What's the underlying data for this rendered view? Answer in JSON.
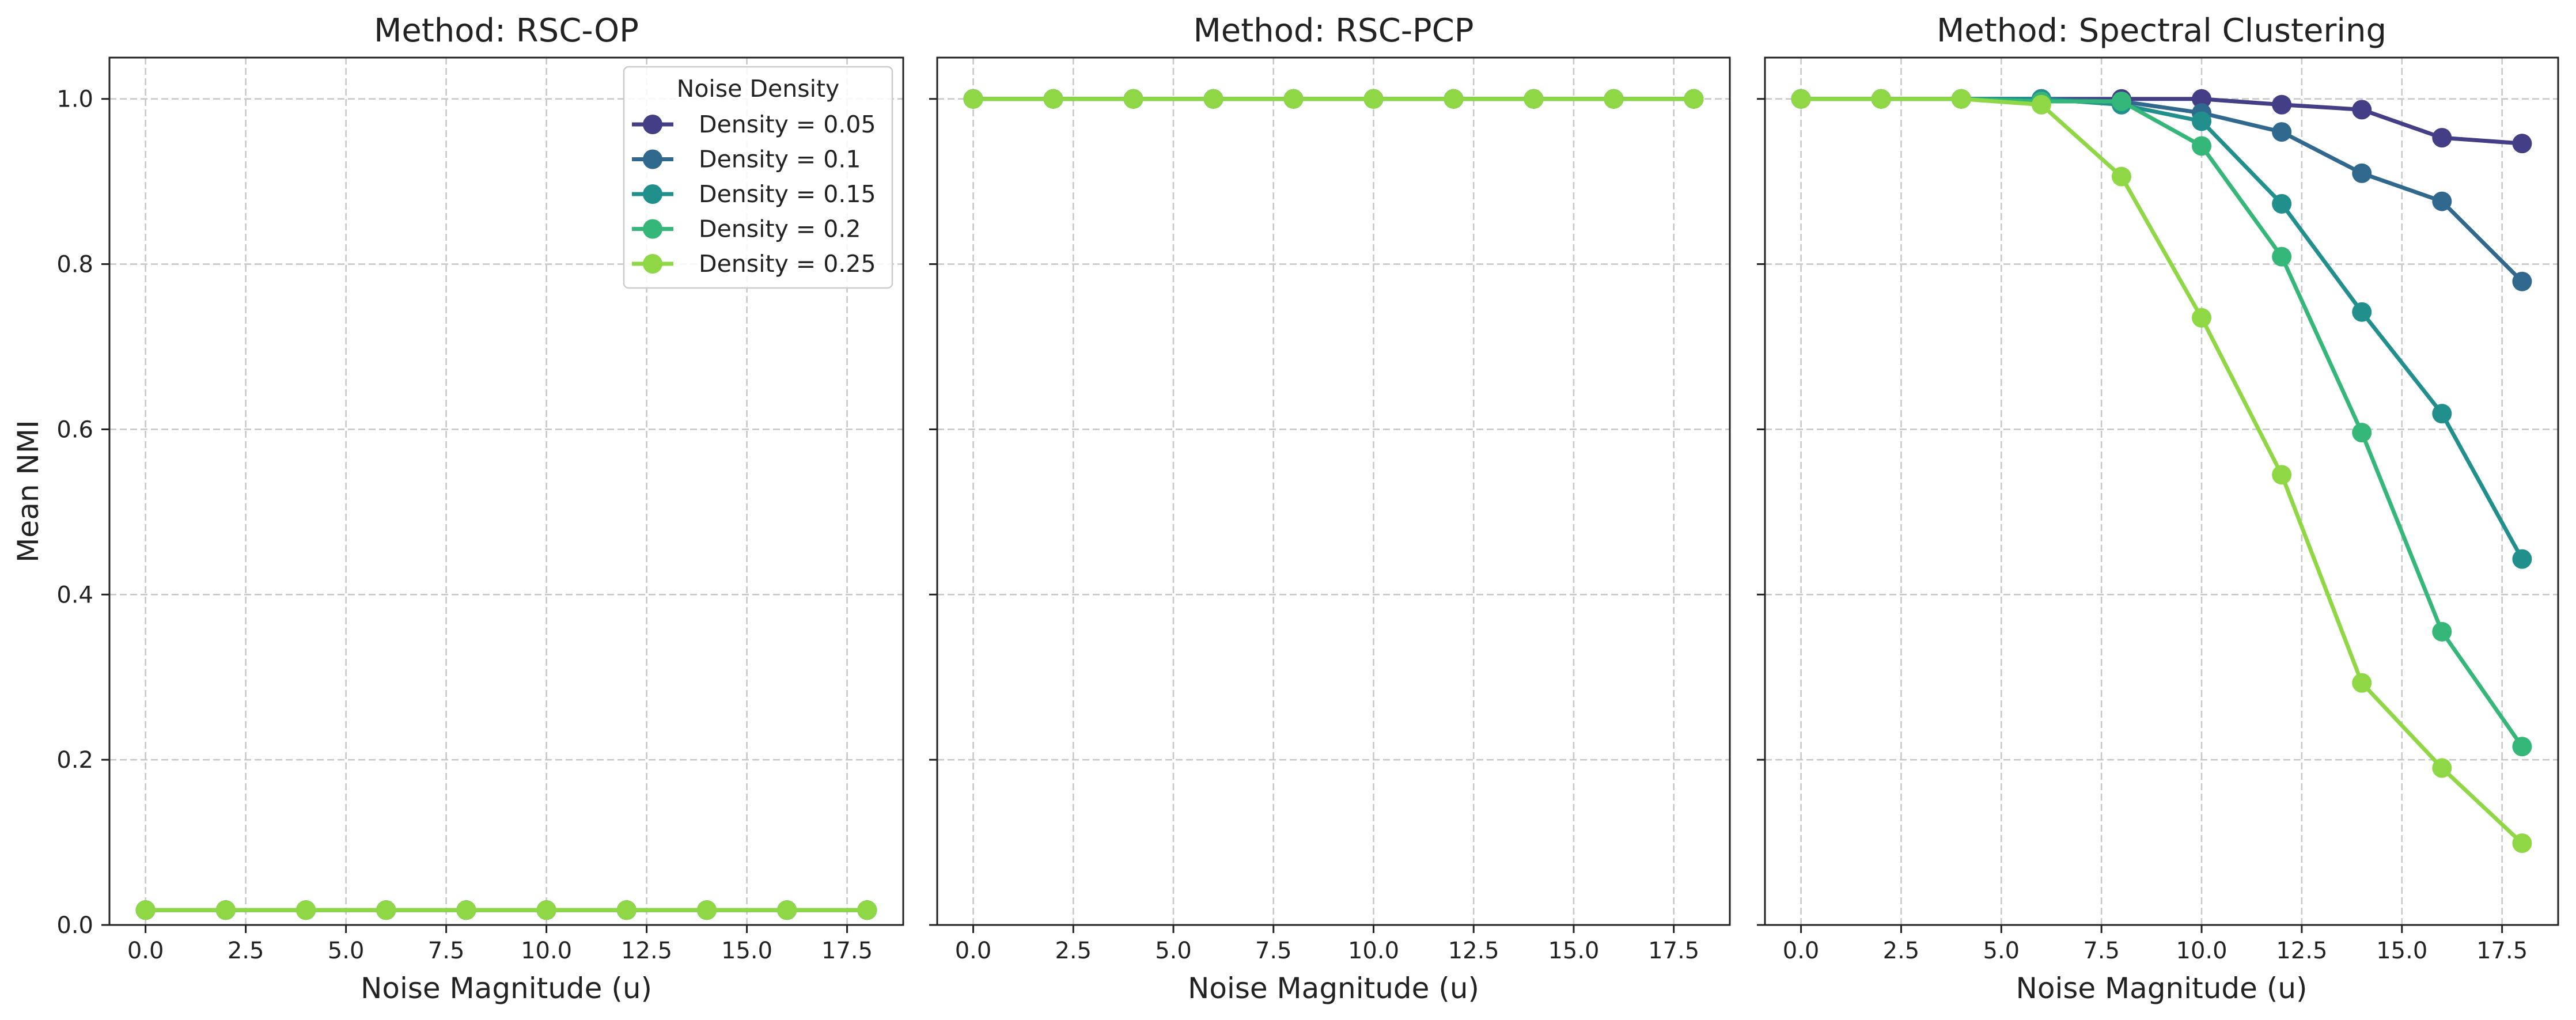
{
  "figure": {
    "ylabel": "Mean NMI"
  },
  "legend": {
    "title": "Noise Density",
    "position": "top-right (first panel)"
  },
  "colors": {
    "Density = 0.05": "#433e85",
    "Density = 0.1": "#31688e",
    "Density = 0.15": "#21908d",
    "Density = 0.2": "#35b779",
    "Density = 0.25": "#8fd744"
  },
  "chart_data": [
    {
      "type": "line",
      "title": "Method: RSC-OP",
      "xlabel": "Noise Magnitude (u)",
      "ylabel": "Mean NMI",
      "xlim": [
        -0.9,
        18.9
      ],
      "ylim": [
        0.0,
        1.05
      ],
      "xticks": [
        "0.0",
        "2.5",
        "5.0",
        "7.5",
        "10.0",
        "12.5",
        "15.0",
        "17.5"
      ],
      "yticks": [
        "0.0",
        "0.2",
        "0.4",
        "0.6",
        "0.8",
        "1.0"
      ],
      "grid": true,
      "legend": true,
      "x": [
        0,
        2,
        4,
        6,
        8,
        10,
        12,
        14,
        16,
        18
      ],
      "series": [
        {
          "name": "Density = 0.05",
          "values": [
            0.018,
            0.018,
            0.018,
            0.018,
            0.018,
            0.018,
            0.018,
            0.018,
            0.018,
            0.018
          ]
        },
        {
          "name": "Density = 0.1",
          "values": [
            0.018,
            0.018,
            0.018,
            0.018,
            0.018,
            0.018,
            0.018,
            0.018,
            0.018,
            0.018
          ]
        },
        {
          "name": "Density = 0.15",
          "values": [
            0.018,
            0.018,
            0.018,
            0.018,
            0.018,
            0.018,
            0.018,
            0.018,
            0.018,
            0.018
          ]
        },
        {
          "name": "Density = 0.2",
          "values": [
            0.018,
            0.018,
            0.018,
            0.018,
            0.018,
            0.018,
            0.018,
            0.018,
            0.018,
            0.018
          ]
        },
        {
          "name": "Density = 0.25",
          "values": [
            0.018,
            0.018,
            0.018,
            0.018,
            0.018,
            0.018,
            0.018,
            0.018,
            0.018,
            0.018
          ]
        }
      ]
    },
    {
      "type": "line",
      "title": "Method: RSC-PCP",
      "xlabel": "Noise Magnitude (u)",
      "ylabel": "",
      "xlim": [
        -0.9,
        18.9
      ],
      "ylim": [
        0.0,
        1.05
      ],
      "xticks": [
        "0.0",
        "2.5",
        "5.0",
        "7.5",
        "10.0",
        "12.5",
        "15.0",
        "17.5"
      ],
      "yticks": [],
      "grid": true,
      "legend": false,
      "x": [
        0,
        2,
        4,
        6,
        8,
        10,
        12,
        14,
        16,
        18
      ],
      "series": [
        {
          "name": "Density = 0.05",
          "values": [
            1.0,
            1.0,
            1.0,
            1.0,
            1.0,
            1.0,
            1.0,
            1.0,
            1.0,
            1.0
          ]
        },
        {
          "name": "Density = 0.1",
          "values": [
            1.0,
            1.0,
            1.0,
            1.0,
            1.0,
            1.0,
            1.0,
            1.0,
            1.0,
            1.0
          ]
        },
        {
          "name": "Density = 0.15",
          "values": [
            1.0,
            1.0,
            1.0,
            1.0,
            1.0,
            1.0,
            1.0,
            1.0,
            1.0,
            1.0
          ]
        },
        {
          "name": "Density = 0.2",
          "values": [
            1.0,
            1.0,
            1.0,
            1.0,
            1.0,
            1.0,
            1.0,
            1.0,
            1.0,
            1.0
          ]
        },
        {
          "name": "Density = 0.25",
          "values": [
            1.0,
            1.0,
            1.0,
            1.0,
            1.0,
            1.0,
            1.0,
            1.0,
            1.0,
            1.0
          ]
        }
      ]
    },
    {
      "type": "line",
      "title": "Method: Spectral Clustering",
      "xlabel": "Noise Magnitude (u)",
      "ylabel": "",
      "xlim": [
        -0.9,
        18.9
      ],
      "ylim": [
        0.0,
        1.05
      ],
      "xticks": [
        "0.0",
        "2.5",
        "5.0",
        "7.5",
        "10.0",
        "12.5",
        "15.0",
        "17.5"
      ],
      "yticks": [],
      "grid": true,
      "legend": false,
      "x": [
        0,
        2,
        4,
        6,
        8,
        10,
        12,
        14,
        16,
        18
      ],
      "series": [
        {
          "name": "Density = 0.05",
          "values": [
            1.0,
            1.0,
            1.0,
            1.0,
            1.0,
            1.0,
            0.993,
            0.987,
            0.953,
            0.946
          ]
        },
        {
          "name": "Density = 0.1",
          "values": [
            1.0,
            1.0,
            1.0,
            1.0,
            0.997,
            0.983,
            0.96,
            0.91,
            0.876,
            0.779
          ]
        },
        {
          "name": "Density = 0.15",
          "values": [
            1.0,
            1.0,
            1.0,
            1.0,
            0.993,
            0.973,
            0.873,
            0.742,
            0.619,
            0.443
          ]
        },
        {
          "name": "Density = 0.2",
          "values": [
            1.0,
            1.0,
            1.0,
            0.997,
            0.997,
            0.943,
            0.809,
            0.596,
            0.355,
            0.216
          ]
        },
        {
          "name": "Density = 0.25",
          "values": [
            1.0,
            1.0,
            1.0,
            0.993,
            0.906,
            0.735,
            0.545,
            0.293,
            0.19,
            0.099
          ]
        }
      ]
    }
  ]
}
